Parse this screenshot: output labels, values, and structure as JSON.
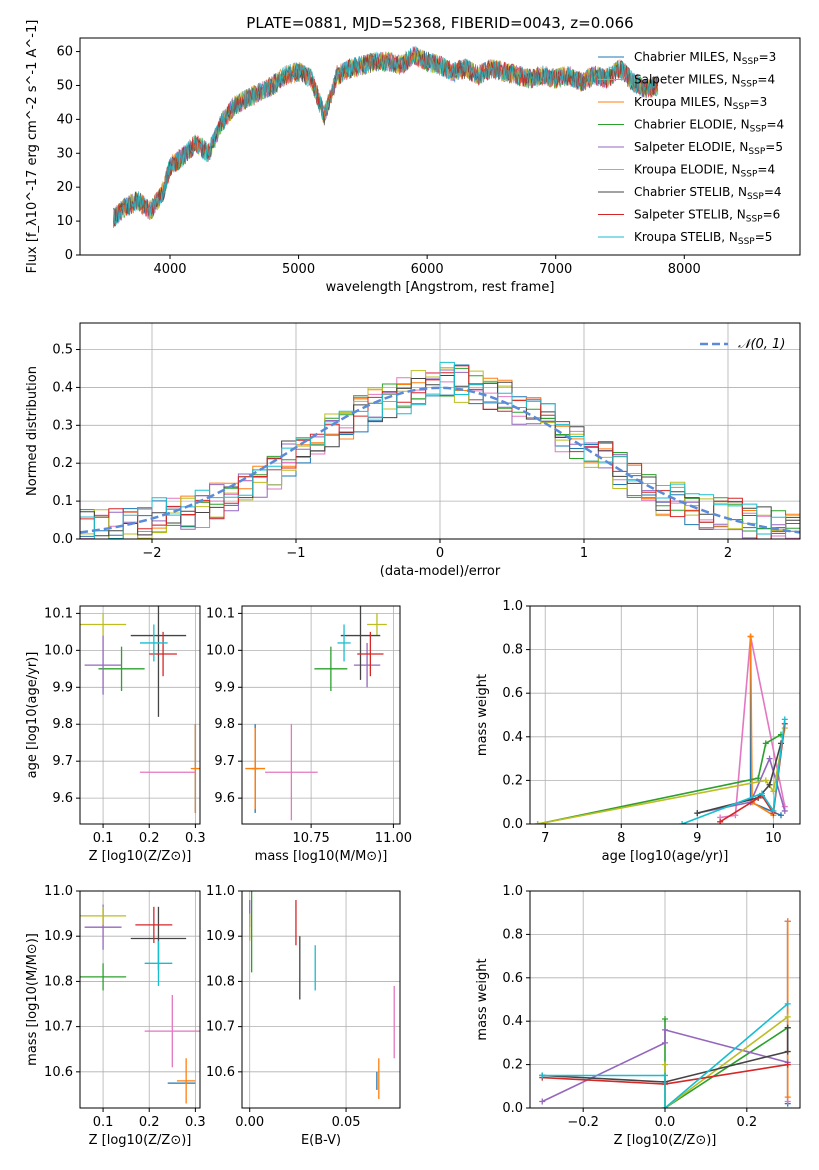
{
  "figure_title": "PLATE=0881, MJD=52368, FIBERID=0043, z=0.066",
  "models": [
    {
      "name": "Chabrier MILES",
      "nssp": "3",
      "color": "#1f77b4"
    },
    {
      "name": "Salpeter MILES",
      "nssp": "4",
      "color": "#e377c2"
    },
    {
      "name": "Kroupa MILES",
      "nssp": "3",
      "color": "#ff7f0e"
    },
    {
      "name": "Chabrier ELODIE",
      "nssp": "4",
      "color": "#2ca02c"
    },
    {
      "name": "Salpeter ELODIE",
      "nssp": "5",
      "color": "#9467bd"
    },
    {
      "name": "Kroupa ELODIE",
      "nssp": "4",
      "color": "#bcbd22"
    },
    {
      "name": "Chabrier STELIB",
      "nssp": "4",
      "color": "#444444"
    },
    {
      "name": "Salpeter STELIB",
      "nssp": "6",
      "color": "#d62728"
    },
    {
      "name": "Kroupa STELIB",
      "nssp": "5",
      "color": "#17becf"
    }
  ],
  "chart_data": [
    {
      "id": "spectrum",
      "type": "line",
      "xlabel": "wavelength [Angstrom, rest frame]",
      "ylabel": "Flux [f_λ10^-17 erg cm^-2 s^-1 A^-1]",
      "xlim": [
        3300,
        8900
      ],
      "ylim": [
        0,
        64
      ],
      "xticks": [
        "4000",
        "5000",
        "6000",
        "7000",
        "8000"
      ],
      "yticks": [
        "0",
        "10",
        "20",
        "30",
        "40",
        "50",
        "60"
      ],
      "x": [
        3560,
        3650,
        3750,
        3850,
        3950,
        4000,
        4100,
        4200,
        4300,
        4400,
        4500,
        4600,
        4700,
        4800,
        4900,
        5000,
        5100,
        5200,
        5300,
        5400,
        5500,
        5600,
        5700,
        5800,
        5900,
        6000,
        6100,
        6200,
        6300,
        6400,
        6500,
        6600,
        6700,
        6800,
        6900,
        7000,
        7100,
        7200,
        7300,
        7400,
        7500,
        7600,
        7700,
        7800
      ],
      "y": [
        11,
        14,
        16,
        13,
        19,
        26,
        29,
        33,
        30,
        39,
        44,
        46,
        48,
        50,
        53,
        54,
        52,
        41,
        53,
        55,
        56,
        57,
        57,
        56,
        59,
        57,
        56,
        54,
        55,
        53,
        55,
        54,
        53,
        52,
        53,
        52,
        53,
        51,
        53,
        52,
        55,
        51,
        49,
        50
      ],
      "grid": false,
      "legend": "right"
    },
    {
      "id": "residuals",
      "type": "area",
      "xlabel": "(data-model)/error",
      "ylabel": "Normed distribution",
      "xlim": [
        -2.5,
        2.5
      ],
      "ylim": [
        0,
        0.57
      ],
      "xticks": [
        "−2",
        "−1",
        "0",
        "1",
        "2"
      ],
      "yticks": [
        "0.0",
        "0.1",
        "0.2",
        "0.3",
        "0.4",
        "0.5"
      ],
      "legend_label": "𝒩(0, 1)",
      "bin_edges_start": -2.5,
      "bin_width": 0.1,
      "values": [
        0.03,
        0.03,
        0.03,
        0.04,
        0.05,
        0.06,
        0.06,
        0.07,
        0.08,
        0.1,
        0.11,
        0.13,
        0.15,
        0.18,
        0.21,
        0.23,
        0.25,
        0.28,
        0.31,
        0.33,
        0.35,
        0.37,
        0.38,
        0.4,
        0.41,
        0.42,
        0.41,
        0.4,
        0.38,
        0.37,
        0.35,
        0.33,
        0.31,
        0.28,
        0.25,
        0.23,
        0.21,
        0.18,
        0.15,
        0.13,
        0.11,
        0.1,
        0.08,
        0.07,
        0.06,
        0.06,
        0.05,
        0.04,
        0.03,
        0.03
      ],
      "grid": true
    },
    {
      "id": "age_vs_Z",
      "type": "scatter",
      "xlabel": "Z [log10(Z/Z⊙)]",
      "ylabel": "age  [log10(age/yr)]",
      "xlim": [
        0.05,
        0.31
      ],
      "ylim": [
        9.53,
        10.12
      ],
      "xticks": [
        "0.1",
        "0.2",
        "0.3"
      ],
      "yticks": [
        "9.6",
        "9.7",
        "9.8",
        "9.9",
        "10.0",
        "10.1"
      ],
      "points": [
        {
          "x": 0.3,
          "y": 9.68,
          "xerr": 0.0,
          "yerr": 0.12,
          "model": 0
        },
        {
          "x": 0.24,
          "y": 9.67,
          "xerr": 0.06,
          "yerr": 0.0,
          "model": 1
        },
        {
          "x": 0.3,
          "y": 9.68,
          "xerr": 0.01,
          "yerr": 0.12,
          "model": 2
        },
        {
          "x": 0.14,
          "y": 9.95,
          "xerr": 0.05,
          "yerr": 0.06,
          "model": 3
        },
        {
          "x": 0.1,
          "y": 9.96,
          "xerr": 0.04,
          "yerr": 0.08,
          "model": 4
        },
        {
          "x": 0.1,
          "y": 10.07,
          "xerr": 0.05,
          "yerr": 0.03,
          "model": 5
        },
        {
          "x": 0.22,
          "y": 10.04,
          "xerr": 0.06,
          "yerr": 0.22,
          "model": 6
        },
        {
          "x": 0.23,
          "y": 9.99,
          "xerr": 0.03,
          "yerr": 0.06,
          "model": 7
        },
        {
          "x": 0.21,
          "y": 10.02,
          "xerr": 0.03,
          "yerr": 0.05,
          "model": 8
        }
      ],
      "grid": true
    },
    {
      "id": "age_vs_mass",
      "type": "scatter",
      "xlabel": "mass [log10(M/M⊙)]",
      "ylabel": "",
      "xlim": [
        10.54,
        11.02
      ],
      "ylim": [
        9.53,
        10.12
      ],
      "xticks": [
        "10.75",
        "11.00"
      ],
      "yticks": [
        "9.6",
        "9.7",
        "9.8",
        "9.9",
        "10.0",
        "10.1"
      ],
      "points": [
        {
          "x": 10.58,
          "y": 9.68,
          "xerr": 0.01,
          "yerr": 0.12,
          "model": 0
        },
        {
          "x": 10.69,
          "y": 9.67,
          "xerr": 0.08,
          "yerr": 0.13,
          "model": 1
        },
        {
          "x": 10.58,
          "y": 9.68,
          "xerr": 0.03,
          "yerr": 0.11,
          "model": 2
        },
        {
          "x": 10.81,
          "y": 9.95,
          "xerr": 0.05,
          "yerr": 0.06,
          "model": 3
        },
        {
          "x": 10.92,
          "y": 9.96,
          "xerr": 0.04,
          "yerr": 0.06,
          "model": 4
        },
        {
          "x": 10.95,
          "y": 10.07,
          "xerr": 0.03,
          "yerr": 0.03,
          "model": 5
        },
        {
          "x": 10.9,
          "y": 10.04,
          "xerr": 0.06,
          "yerr": 0.12,
          "model": 6
        },
        {
          "x": 10.93,
          "y": 9.99,
          "xerr": 0.04,
          "yerr": 0.06,
          "model": 7
        },
        {
          "x": 10.85,
          "y": 10.02,
          "xerr": 0.02,
          "yerr": 0.05,
          "model": 8
        }
      ],
      "grid": true
    },
    {
      "id": "weight_vs_age",
      "type": "line",
      "xlabel": "age  [log10(age/yr)]",
      "ylabel": "mass weight",
      "xlim": [
        6.8,
        10.35
      ],
      "ylim": [
        0,
        1.0
      ],
      "xticks": [
        "7",
        "8",
        "9",
        "10"
      ],
      "yticks": [
        "0.0",
        "0.2",
        "0.4",
        "0.6",
        "0.8",
        "1.0"
      ],
      "series": [
        {
          "model": 0,
          "x": [
            9.7,
            9.7,
            10.1
          ],
          "y": [
            0.86,
            0.1,
            0.04
          ]
        },
        {
          "model": 1,
          "x": [
            9.3,
            9.5,
            9.7,
            10.15
          ],
          "y": [
            0.03,
            0.04,
            0.86,
            0.08
          ]
        },
        {
          "model": 2,
          "x": [
            9.7,
            9.72,
            10.0
          ],
          "y": [
            0.86,
            0.1,
            0.04
          ]
        },
        {
          "model": 3,
          "x": [
            6.9,
            9.8,
            9.9,
            10.1
          ],
          "y": [
            0.0,
            0.21,
            0.37,
            0.41
          ]
        },
        {
          "model": 4,
          "x": [
            9.0,
            9.7,
            9.95,
            10.15
          ],
          "y": [
            0.05,
            0.1,
            0.3,
            0.06
          ]
        },
        {
          "model": 5,
          "x": [
            6.9,
            9.9,
            10.0,
            10.15
          ],
          "y": [
            0.0,
            0.2,
            0.15,
            0.44
          ]
        },
        {
          "model": 6,
          "x": [
            9.0,
            9.8,
            9.95,
            10.1
          ],
          "y": [
            0.05,
            0.12,
            0.18,
            0.37
          ]
        },
        {
          "model": 7,
          "x": [
            9.3,
            9.85,
            10.0,
            10.15
          ],
          "y": [
            0.01,
            0.13,
            0.05,
            0.46
          ]
        },
        {
          "model": 8,
          "x": [
            8.8,
            9.85,
            10.0,
            10.15
          ],
          "y": [
            0.0,
            0.14,
            0.06,
            0.48
          ]
        }
      ],
      "grid": true
    },
    {
      "id": "mass_vs_Z",
      "type": "scatter",
      "xlabel": "Z [log10(Z/Z⊙)]",
      "ylabel": "mass [log10(M/M⊙)]",
      "xlim": [
        0.05,
        0.31
      ],
      "ylim": [
        10.52,
        11.0
      ],
      "xticks": [
        "0.1",
        "0.2",
        "0.3"
      ],
      "yticks": [
        "10.6",
        "10.7",
        "10.8",
        "10.9",
        "11.0"
      ],
      "points": [
        {
          "x": 0.27,
          "y": 10.575,
          "xerr": 0.03,
          "yerr": 0.0,
          "model": 0
        },
        {
          "x": 0.25,
          "y": 10.69,
          "xerr": 0.06,
          "yerr": 0.08,
          "model": 1
        },
        {
          "x": 0.28,
          "y": 10.58,
          "xerr": 0.02,
          "yerr": 0.05,
          "model": 2
        },
        {
          "x": 0.1,
          "y": 10.81,
          "xerr": 0.05,
          "yerr": 0.03,
          "model": 3
        },
        {
          "x": 0.1,
          "y": 10.92,
          "xerr": 0.04,
          "yerr": 0.05,
          "model": 4
        },
        {
          "x": 0.1,
          "y": 10.945,
          "xerr": 0.05,
          "yerr": 0.02,
          "model": 5
        },
        {
          "x": 0.22,
          "y": 10.895,
          "xerr": 0.06,
          "yerr": 0.07,
          "model": 6
        },
        {
          "x": 0.21,
          "y": 10.925,
          "xerr": 0.04,
          "yerr": 0.04,
          "model": 7
        },
        {
          "x": 0.22,
          "y": 10.84,
          "xerr": 0.03,
          "yerr": 0.05,
          "model": 8
        }
      ],
      "grid": true
    },
    {
      "id": "mass_vs_ebv",
      "type": "scatter",
      "xlabel": "E(B-V)",
      "ylabel": "",
      "xlim": [
        -0.004,
        0.078
      ],
      "ylim": [
        10.52,
        11.0
      ],
      "xticks": [
        "0.00",
        "0.05"
      ],
      "yticks": [
        "10.6",
        "10.7",
        "10.8",
        "10.9",
        "11.0"
      ],
      "points": [
        {
          "x": 0.001,
          "y": 10.91,
          "xerr": 0.0,
          "yerr": 0.09,
          "model": 3
        },
        {
          "x": 0.0,
          "y": 10.95,
          "xerr": 0.0,
          "yerr": 0.03,
          "model": 4
        },
        {
          "x": 0.0,
          "y": 10.92,
          "xerr": 0.0,
          "yerr": 0.03,
          "model": 5
        },
        {
          "x": 0.026,
          "y": 10.83,
          "xerr": 0.0,
          "yerr": 0.07,
          "model": 6
        },
        {
          "x": 0.024,
          "y": 10.93,
          "xerr": 0.0,
          "yerr": 0.05,
          "model": 7
        },
        {
          "x": 0.034,
          "y": 10.83,
          "xerr": 0.0,
          "yerr": 0.05,
          "model": 8
        },
        {
          "x": 0.067,
          "y": 10.585,
          "xerr": 0.0,
          "yerr": 0.045,
          "model": 2
        },
        {
          "x": 0.066,
          "y": 10.58,
          "xerr": 0.0,
          "yerr": 0.02,
          "model": 0
        },
        {
          "x": 0.075,
          "y": 10.71,
          "xerr": 0.0,
          "yerr": 0.08,
          "model": 1
        }
      ],
      "grid": true
    },
    {
      "id": "weight_vs_Z",
      "type": "line",
      "xlabel": "Z [log10(Z/Z⊙)]",
      "ylabel": "mass weight",
      "xlim": [
        -0.33,
        0.33
      ],
      "ylim": [
        0,
        1.0
      ],
      "xticks": [
        "−0.2",
        "0.0",
        "0.2"
      ],
      "yticks": [
        "0.0",
        "0.2",
        "0.4",
        "0.6",
        "0.8",
        "1.0"
      ],
      "series": [
        {
          "model": 0,
          "x": [
            0.3,
            0.3
          ],
          "y": [
            0.86,
            0.02
          ]
        },
        {
          "model": 1,
          "x": [
            0.3,
            0.3
          ],
          "y": [
            0.86,
            0.03
          ]
        },
        {
          "model": 2,
          "x": [
            0.3,
            0.3
          ],
          "y": [
            0.86,
            0.05
          ]
        },
        {
          "model": 3,
          "x": [
            0.0,
            0.0,
            0.3
          ],
          "y": [
            0.41,
            0.0,
            0.37
          ]
        },
        {
          "model": 4,
          "x": [
            -0.3,
            0.0,
            0.0,
            0.3
          ],
          "y": [
            0.03,
            0.3,
            0.36,
            0.21
          ]
        },
        {
          "model": 5,
          "x": [
            0.0,
            0.0,
            0.3
          ],
          "y": [
            0.2,
            0.0,
            0.42
          ]
        },
        {
          "model": 6,
          "x": [
            -0.3,
            0.0,
            0.3,
            0.3
          ],
          "y": [
            0.15,
            0.12,
            0.26,
            0.37
          ]
        },
        {
          "model": 7,
          "x": [
            -0.3,
            0.0,
            0.3
          ],
          "y": [
            0.14,
            0.11,
            0.2
          ]
        },
        {
          "model": 8,
          "x": [
            -0.3,
            0.0,
            0.0,
            0.3
          ],
          "y": [
            0.15,
            0.15,
            0.0,
            0.48
          ]
        }
      ],
      "grid": true
    }
  ]
}
